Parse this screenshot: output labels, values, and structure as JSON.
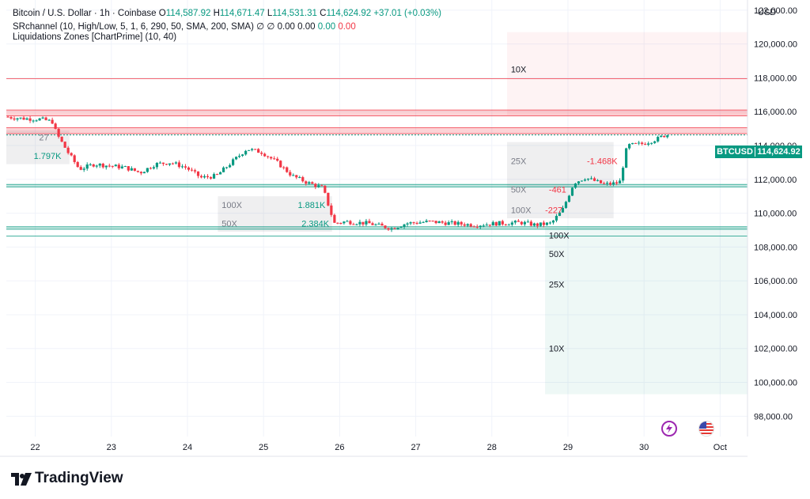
{
  "header": {
    "symbol": "Bitcoin / U.S. Dollar · 1h · Coinbase",
    "o_label": "O",
    "o": "114,587.92",
    "h_label": "H",
    "h": "114,671.47",
    "l_label": "L",
    "l": "114,531.31",
    "c_label": "C",
    "c": "114,624.92",
    "change": "+37.01 (+0.03%)",
    "indicator1_name": "SRchannel (10, High/Low, 5, 1, 6, 290, 50, SMA, 200, SMA)",
    "indicator1_symbols": "∅  ∅",
    "indicator1_v1": "0.00",
    "indicator1_v2": "0.00",
    "indicator1_v3": "0.00",
    "indicator1_v4": "0.00",
    "indicator2": "Liquidations Zones [ChartPrime] (10, 40)"
  },
  "currency": "USD",
  "price_tag": {
    "ticker": "BTCUSD",
    "price": "114,624.92"
  },
  "brand": "TradingView",
  "colors": {
    "up": "#089981",
    "down": "#f23645",
    "grid": "#f0f3fa",
    "text": "#131722"
  },
  "icons": [
    "lightning-icon",
    "us-flag-icon"
  ],
  "chart_data": {
    "type": "candlestick",
    "title": "Bitcoin / U.S. Dollar · 1h · Coinbase",
    "ylim": [
      96800,
      122600
    ],
    "y_ticks": [
      98000,
      100000,
      102000,
      104000,
      106000,
      108000,
      110000,
      112000,
      114000,
      116000,
      118000,
      120000,
      122000
    ],
    "y_tick_labels": [
      "98,000.00",
      "100,000.00",
      "102,000.00",
      "104,000.00",
      "106,000.00",
      "108,000.00",
      "110,000.00",
      "112,000.00",
      "114,000.00",
      "116,000.00",
      "118,000.00",
      "120,000.00",
      "122,000.00"
    ],
    "x_days": [
      22,
      23,
      24,
      25,
      26,
      27,
      28,
      29,
      30,
      31
    ],
    "x_labels": [
      "22",
      "23",
      "24",
      "25",
      "26",
      "27",
      "28",
      "29",
      "30",
      "Oct"
    ],
    "x_day_range": [
      21.62,
      31.36
    ],
    "price_path": [
      [
        21.62,
        115700
      ],
      [
        21.85,
        115600
      ],
      [
        22.1,
        115550
      ],
      [
        22.25,
        115400
      ],
      [
        22.3,
        114700
      ],
      [
        22.45,
        113600
      ],
      [
        22.6,
        112600
      ],
      [
        22.8,
        112900
      ],
      [
        23.0,
        112800
      ],
      [
        23.2,
        112700
      ],
      [
        23.4,
        112400
      ],
      [
        23.6,
        112900
      ],
      [
        23.8,
        113000
      ],
      [
        24.0,
        112700
      ],
      [
        24.2,
        112100
      ],
      [
        24.4,
        112200
      ],
      [
        24.6,
        113000
      ],
      [
        24.8,
        113800
      ],
      [
        25.0,
        113600
      ],
      [
        25.2,
        113000
      ],
      [
        25.4,
        112200
      ],
      [
        25.6,
        111800
      ],
      [
        25.8,
        111500
      ],
      [
        25.95,
        109400
      ],
      [
        26.1,
        109500
      ],
      [
        26.4,
        109400
      ],
      [
        26.7,
        109100
      ],
      [
        26.9,
        109400
      ],
      [
        27.2,
        109500
      ],
      [
        27.5,
        109400
      ],
      [
        27.8,
        109300
      ],
      [
        28.1,
        109400
      ],
      [
        28.4,
        109450
      ],
      [
        28.6,
        109300
      ],
      [
        28.8,
        109400
      ],
      [
        28.95,
        110200
      ],
      [
        29.1,
        111800
      ],
      [
        29.25,
        112100
      ],
      [
        29.5,
        111700
      ],
      [
        29.7,
        111800
      ],
      [
        29.8,
        114000
      ],
      [
        30.0,
        114100
      ],
      [
        30.2,
        114400
      ],
      [
        30.3,
        114625
      ]
    ],
    "horizontal_lines": [
      {
        "price": 117950,
        "color": "#f23645",
        "span": "full"
      },
      {
        "price": 116100,
        "color": "#f23645",
        "span": "full"
      },
      {
        "price": 115750,
        "color": "#f23645",
        "span": "full"
      },
      {
        "price": 115050,
        "color": "#f23645",
        "span": "full"
      },
      {
        "price": 114700,
        "color": "#f23645",
        "span": "full"
      },
      {
        "price": 111700,
        "color": "#089981",
        "span": "full"
      },
      {
        "price": 111550,
        "color": "#089981",
        "span": "full"
      },
      {
        "price": 109200,
        "color": "#089981",
        "span": "full"
      },
      {
        "price": 109050,
        "color": "#089981",
        "span": "full"
      },
      {
        "price": 108650,
        "color": "#089981",
        "span": "full"
      }
    ],
    "zones": [
      {
        "x0": 21.62,
        "x1": 31.36,
        "y0": 116100,
        "y1": 115750,
        "kind": "resistance"
      },
      {
        "x0": 21.62,
        "x1": 31.36,
        "y0": 115050,
        "y1": 114700,
        "kind": "resistance"
      },
      {
        "x0": 21.62,
        "x1": 31.36,
        "y0": 111700,
        "y1": 111550,
        "kind": "support"
      },
      {
        "x0": 21.62,
        "x1": 31.36,
        "y0": 109200,
        "y1": 109050,
        "kind": "support"
      },
      {
        "x0": 28.2,
        "x1": 31.36,
        "y0": 120700,
        "y1": 115800,
        "kind": "liq-short"
      },
      {
        "x0": 28.2,
        "x1": 29.6,
        "y0": 114200,
        "y1": 109700,
        "kind": "gray"
      },
      {
        "x0": 24.4,
        "x1": 25.9,
        "y0": 111000,
        "y1": 108900,
        "kind": "gray"
      },
      {
        "x0": 21.62,
        "x1": 22.45,
        "y0": 114900,
        "y1": 112900,
        "kind": "gray"
      },
      {
        "x0": 28.7,
        "x1": 31.36,
        "y0": 109150,
        "y1": 99300,
        "kind": "liq-long"
      }
    ],
    "annotations": [
      {
        "text": "10X",
        "day": 28.25,
        "price": 118500,
        "color": "#131722"
      },
      {
        "text": "25X",
        "day": 28.25,
        "price": 113100,
        "color": "#787b86"
      },
      {
        "text": "50X",
        "day": 28.25,
        "price": 111400,
        "color": "#787b86"
      },
      {
        "text": "100X",
        "day": 28.25,
        "price": 110200,
        "color": "#787b86"
      },
      {
        "text": "-1.468K",
        "day": 29.25,
        "price": 113100,
        "color": "#f23645"
      },
      {
        "text": "-461",
        "day": 28.75,
        "price": 111400,
        "color": "#f23645"
      },
      {
        "text": "-227",
        "day": 28.7,
        "price": 110200,
        "color": "#f23645"
      },
      {
        "text": "100X",
        "day": 24.45,
        "price": 110500,
        "color": "#787b86"
      },
      {
        "text": "50X",
        "day": 24.45,
        "price": 109400,
        "color": "#787b86"
      },
      {
        "text": "1.881K",
        "day": 25.45,
        "price": 110500,
        "color": "#089981"
      },
      {
        "text": "2.384K",
        "day": 25.5,
        "price": 109400,
        "color": "#089981"
      },
      {
        "text": "27",
        "day": 22.05,
        "price": 114500,
        "color": "#787b86"
      },
      {
        "text": "1.797K",
        "day": 21.98,
        "price": 113400,
        "color": "#089981"
      },
      {
        "text": "100X",
        "day": 28.75,
        "price": 108700,
        "color": "#131722"
      },
      {
        "text": "50X",
        "day": 28.75,
        "price": 107600,
        "color": "#131722"
      },
      {
        "text": "25X",
        "day": 28.75,
        "price": 105800,
        "color": "#131722"
      },
      {
        "text": "10X",
        "day": 28.75,
        "price": 102000,
        "color": "#131722"
      }
    ]
  }
}
